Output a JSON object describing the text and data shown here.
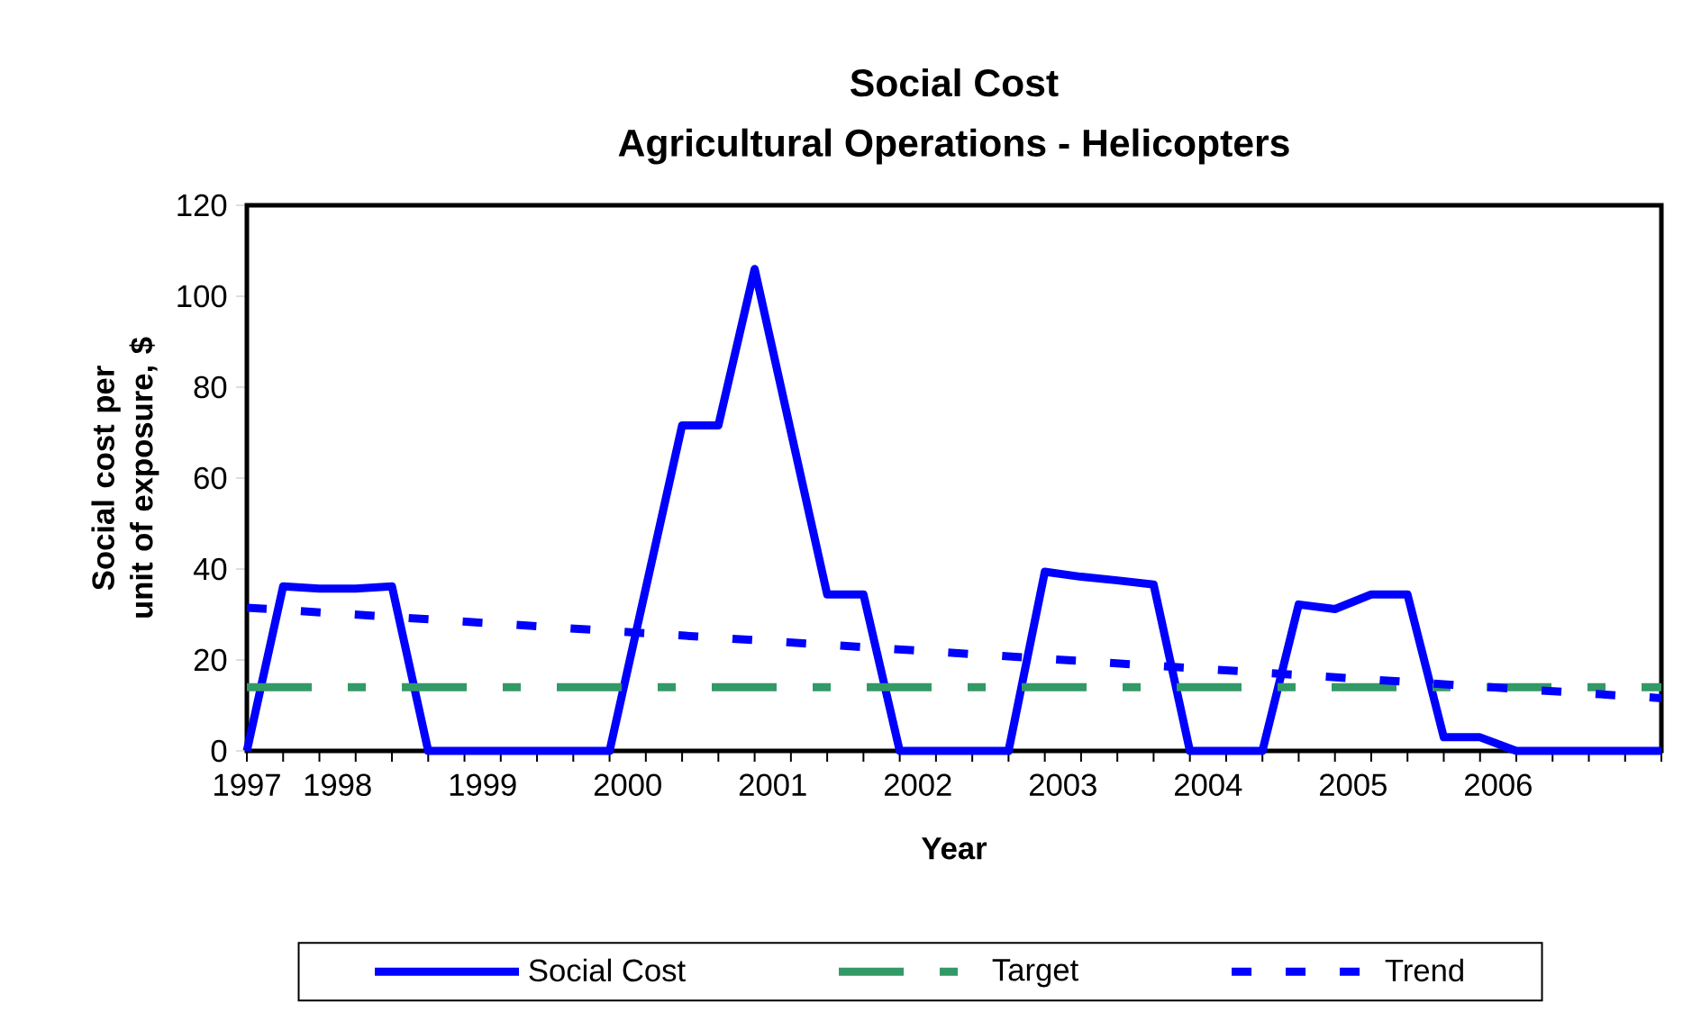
{
  "chart_data": {
    "type": "line",
    "title": "Social Cost",
    "subtitle": "Agricultural Operations - Helicopters",
    "xlabel": "Year",
    "ylabel": "Social cost per unit of exposure, $",
    "x": [
      1997,
      1997.25,
      1997.5,
      1997.75,
      1998,
      1998.25,
      1998.5,
      1998.75,
      1999,
      1999.25,
      1999.5,
      1999.75,
      2000,
      2000.25,
      2000.5,
      2000.75,
      2001,
      2001.25,
      2001.5,
      2001.75,
      2002,
      2002.25,
      2002.5,
      2002.75,
      2003,
      2003.25,
      2003.5,
      2003.75,
      2004,
      2004.25,
      2004.5,
      2004.75,
      2005,
      2005.25,
      2005.5,
      2005.75,
      2006,
      2006.25,
      2006.5,
      2006.75
    ],
    "series": [
      {
        "name": "Social Cost",
        "color": "#0000ff",
        "line_style": "solid",
        "values": [
          0,
          36.2,
          35.7,
          35.7,
          36.2,
          0,
          0,
          0,
          0,
          0,
          0,
          35.8,
          71.6,
          71.6,
          106,
          70.2,
          34.4,
          34.4,
          0,
          0,
          0,
          0,
          39.4,
          38.3,
          37.5,
          36.6,
          0,
          0,
          0,
          32.2,
          31.2,
          34.4,
          34.4,
          3,
          3,
          0,
          0,
          0,
          0,
          0
        ]
      },
      {
        "name": "Trend",
        "color": "#0000ff",
        "line_style": "dotted",
        "x": [
          1997,
          2006.75
        ],
        "values": [
          31.5,
          11.6
        ]
      }
    ],
    "xlim": [
      1997,
      2006.75
    ],
    "xticks": [
      {
        "value": 1997,
        "label": "1997"
      },
      {
        "value": 1997.625,
        "label": "1998"
      },
      {
        "value": 1998.625,
        "label": "1999"
      },
      {
        "value": 1999.625,
        "label": "2000"
      },
      {
        "value": 2000.625,
        "label": "2001"
      },
      {
        "value": 2001.625,
        "label": "2002"
      },
      {
        "value": 2002.625,
        "label": "2003"
      },
      {
        "value": 2003.625,
        "label": "2004"
      },
      {
        "value": 2004.625,
        "label": "2005"
      },
      {
        "value": 2005.625,
        "label": "2006"
      }
    ],
    "ylim": [
      0,
      120
    ],
    "yticks": [
      0,
      20,
      40,
      60,
      80,
      100,
      120
    ],
    "ref_lines": [
      {
        "axis": "y",
        "value": 14,
        "label": "Target",
        "color": "#339966",
        "line_style": "dashed"
      }
    ],
    "grid": false,
    "legend": "bottom",
    "marker": "none"
  }
}
